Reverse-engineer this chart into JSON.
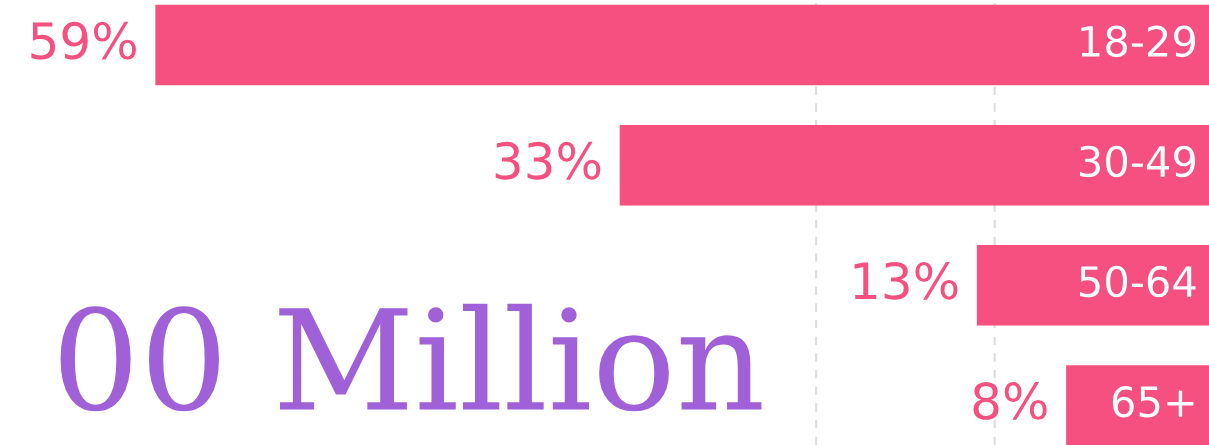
{
  "chart_data": {
    "type": "bar",
    "orientation": "horizontal",
    "relative": false,
    "categories": [
      "18-29",
      "30-49",
      "50-64",
      "65+"
    ],
    "values": [
      59,
      33,
      13,
      8
    ],
    "color": "#f5507f",
    "value_labels": [
      "59%",
      "33%",
      "13%",
      "8%"
    ],
    "xlim": [
      67.7,
      0
    ],
    "ref_lines": [
      {
        "axis": "x",
        "value": 22,
        "color": "#dddddd",
        "line_style": "dashed"
      },
      {
        "axis": "x",
        "value": 12,
        "color": "#dddddd",
        "line_style": "dashed"
      }
    ],
    "annotations": [
      "00 Million"
    ]
  }
}
